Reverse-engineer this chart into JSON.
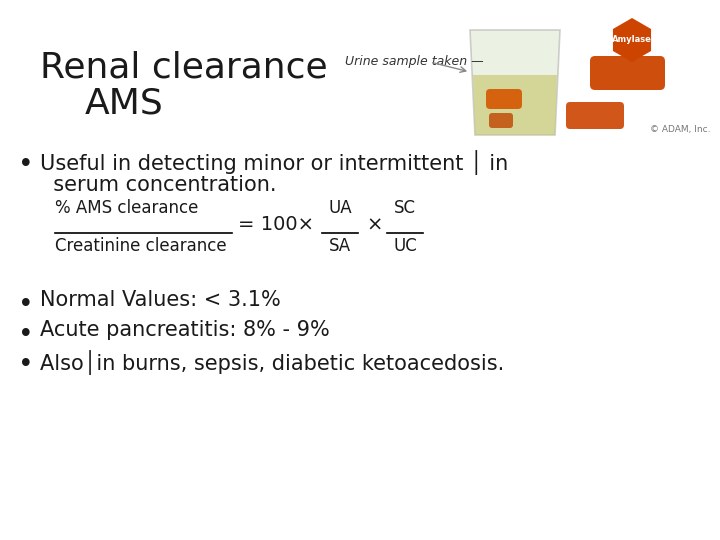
{
  "background_color": "#ffffff",
  "title_line1": "Renal clearance",
  "title_line2": "AMS",
  "title_fontsize": 26,
  "title_color": "#1a1a1a",
  "bullet_fontsize": 15,
  "bullet_color": "#1a1a1a",
  "formula_fontsize": 12,
  "formula_color": "#1a1a1a",
  "adam_credit": "© ADAM, Inc.",
  "urine_label": "Urine sample taken —",
  "urine_label_fontsize": 9,
  "amylase_color": "#cc4400",
  "bullet1_line1": "Useful in detecting minor or intermittent │ in",
  "bullet1_line2": "  serum concentration.",
  "bullet2": "Normal Values: < 3.1%",
  "bullet3": "Acute pancreatitis: 8% - 9%",
  "bullet4": "Also│in burns, sepsis, diabetic ketoacedosis."
}
